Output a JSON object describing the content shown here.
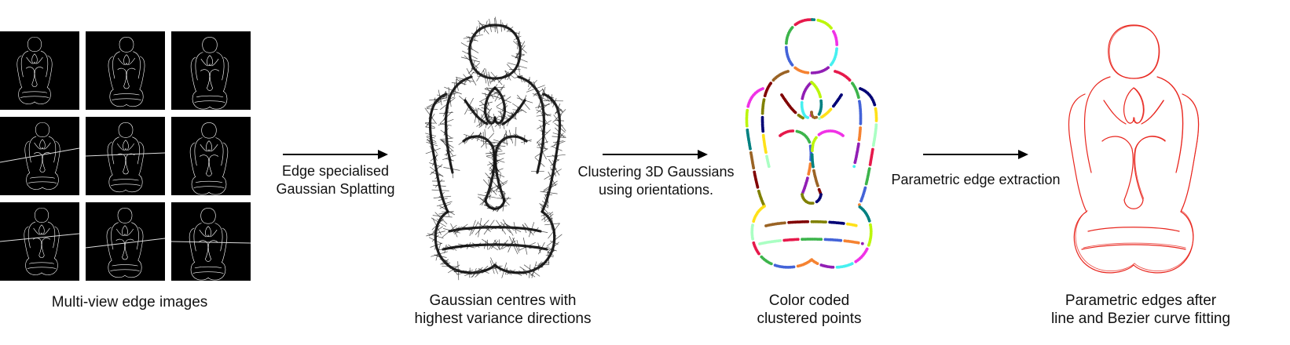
{
  "stages": [
    {
      "caption_lines": [
        "Multi-view edge images"
      ]
    },
    {
      "caption_lines": [
        "Gaussian centres with",
        "highest variance directions"
      ]
    },
    {
      "caption_lines": [
        "Color coded",
        "clustered points"
      ]
    },
    {
      "caption_lines": [
        "Parametric edges after",
        "line and Bezier curve fitting"
      ]
    }
  ],
  "arrows": [
    {
      "label_lines": [
        "Edge specialised",
        "Gaussian Splatting"
      ]
    },
    {
      "label_lines": [
        "Clustering 3D Gaussians",
        "using orientations."
      ]
    },
    {
      "label_lines": [
        "Parametric edge extraction"
      ]
    }
  ],
  "colors": {
    "background": "#ffffff",
    "edge_image_bg": "#000000",
    "edge_image_stroke": "#ffffff",
    "gaussian_stroke": "#111111",
    "fitted_edges": "#e8261e",
    "arrow": "#000000"
  }
}
